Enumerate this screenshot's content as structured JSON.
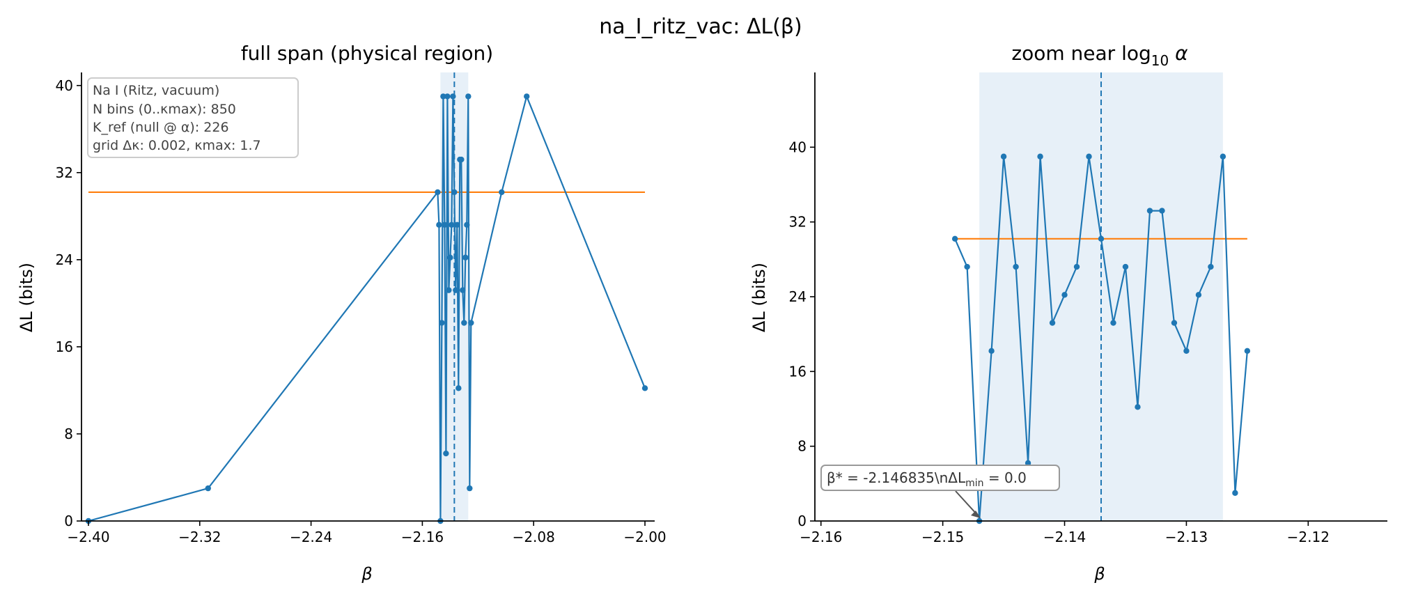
{
  "figure": {
    "suptitle": "na_I_ritz_vac: ΔL(β)"
  },
  "info_box": [
    "Na I (Ritz, vacuum)",
    "N bins (0..κmax): 850",
    "K_ref (null @ α): 226",
    "grid Δκ: 0.002, κmax: 1.7"
  ],
  "annotation": {
    "text_before": "β* = -2.146835\\nΔL",
    "subscript": "min",
    "text_after": " = 0.0"
  },
  "colors": {
    "line": "#1f77b4",
    "ref": "#ff7f0e",
    "band": "#e7f0f8"
  },
  "chart_data": [
    {
      "type": "line",
      "title": "full span (physical region)",
      "xlabel": "β",
      "ylabel": "ΔL (bits)",
      "xlim": [
        -2.405,
        -1.993
      ],
      "ylim": [
        0,
        41.2
      ],
      "xticks": [
        -2.4,
        -2.32,
        -2.24,
        -2.16,
        -2.08,
        -2.0
      ],
      "xtick_labels": [
        "−2.40",
        "−2.32",
        "−2.24",
        "−2.16",
        "−2.08",
        "−2.00"
      ],
      "yticks": [
        0,
        8,
        16,
        24,
        32,
        40
      ],
      "ytick_labels": [
        "0",
        "8",
        "16",
        "24",
        "32",
        "40"
      ],
      "band": [
        -2.147,
        -2.127
      ],
      "vline": -2.137,
      "ref_line": {
        "y": 30.2,
        "x_from": -2.4,
        "x_to": -2.0
      },
      "x": [
        -2.4,
        -2.314,
        -2.149,
        -2.148,
        -2.147,
        -2.146,
        -2.145,
        -2.144,
        -2.143,
        -2.142,
        -2.141,
        -2.14,
        -2.139,
        -2.138,
        -2.137,
        -2.136,
        -2.135,
        -2.134,
        -2.133,
        -2.132,
        -2.131,
        -2.13,
        -2.129,
        -2.128,
        -2.127,
        -2.126,
        -2.125,
        -2.103,
        -2.085,
        -2.0
      ],
      "y": [
        0.0,
        3.0,
        30.2,
        27.2,
        0.0,
        18.2,
        39.0,
        27.2,
        6.2,
        39.0,
        21.2,
        24.2,
        27.2,
        39.0,
        30.2,
        21.2,
        27.2,
        12.2,
        33.2,
        33.2,
        21.2,
        18.2,
        24.2,
        27.2,
        39.0,
        3.0,
        18.2,
        30.2,
        39.0,
        12.2
      ]
    },
    {
      "type": "line",
      "title": "zoom near log",
      "title_sub": "10",
      "title_after": " α",
      "xlabel": "β",
      "ylabel": "ΔL (bits)",
      "xlim": [
        -2.1605,
        -2.1135
      ],
      "ylim": [
        0,
        48
      ],
      "xticks": [
        -2.16,
        -2.15,
        -2.14,
        -2.13,
        -2.12
      ],
      "xtick_labels": [
        "−2.16",
        "−2.15",
        "−2.14",
        "−2.13",
        "−2.12"
      ],
      "yticks": [
        0,
        8,
        16,
        24,
        32,
        40
      ],
      "ytick_labels": [
        "0",
        "8",
        "16",
        "24",
        "32",
        "40"
      ],
      "band": [
        -2.147,
        -2.127
      ],
      "vline": -2.137,
      "ref_line": {
        "y": 30.2,
        "x_from": -2.149,
        "x_to": -2.125
      },
      "x": [
        -2.149,
        -2.148,
        -2.147,
        -2.146,
        -2.145,
        -2.144,
        -2.143,
        -2.142,
        -2.141,
        -2.14,
        -2.139,
        -2.138,
        -2.137,
        -2.136,
        -2.135,
        -2.134,
        -2.133,
        -2.132,
        -2.131,
        -2.13,
        -2.129,
        -2.128,
        -2.127,
        -2.126,
        -2.125
      ],
      "y": [
        30.2,
        27.2,
        0.0,
        18.2,
        39.0,
        27.2,
        6.2,
        39.0,
        21.2,
        24.2,
        27.2,
        39.0,
        30.2,
        21.2,
        27.2,
        12.2,
        33.2,
        33.2,
        21.2,
        18.2,
        24.2,
        27.2,
        39.0,
        3.0,
        18.2
      ],
      "min_point": {
        "x": -2.146835,
        "y": 0.0
      }
    }
  ]
}
